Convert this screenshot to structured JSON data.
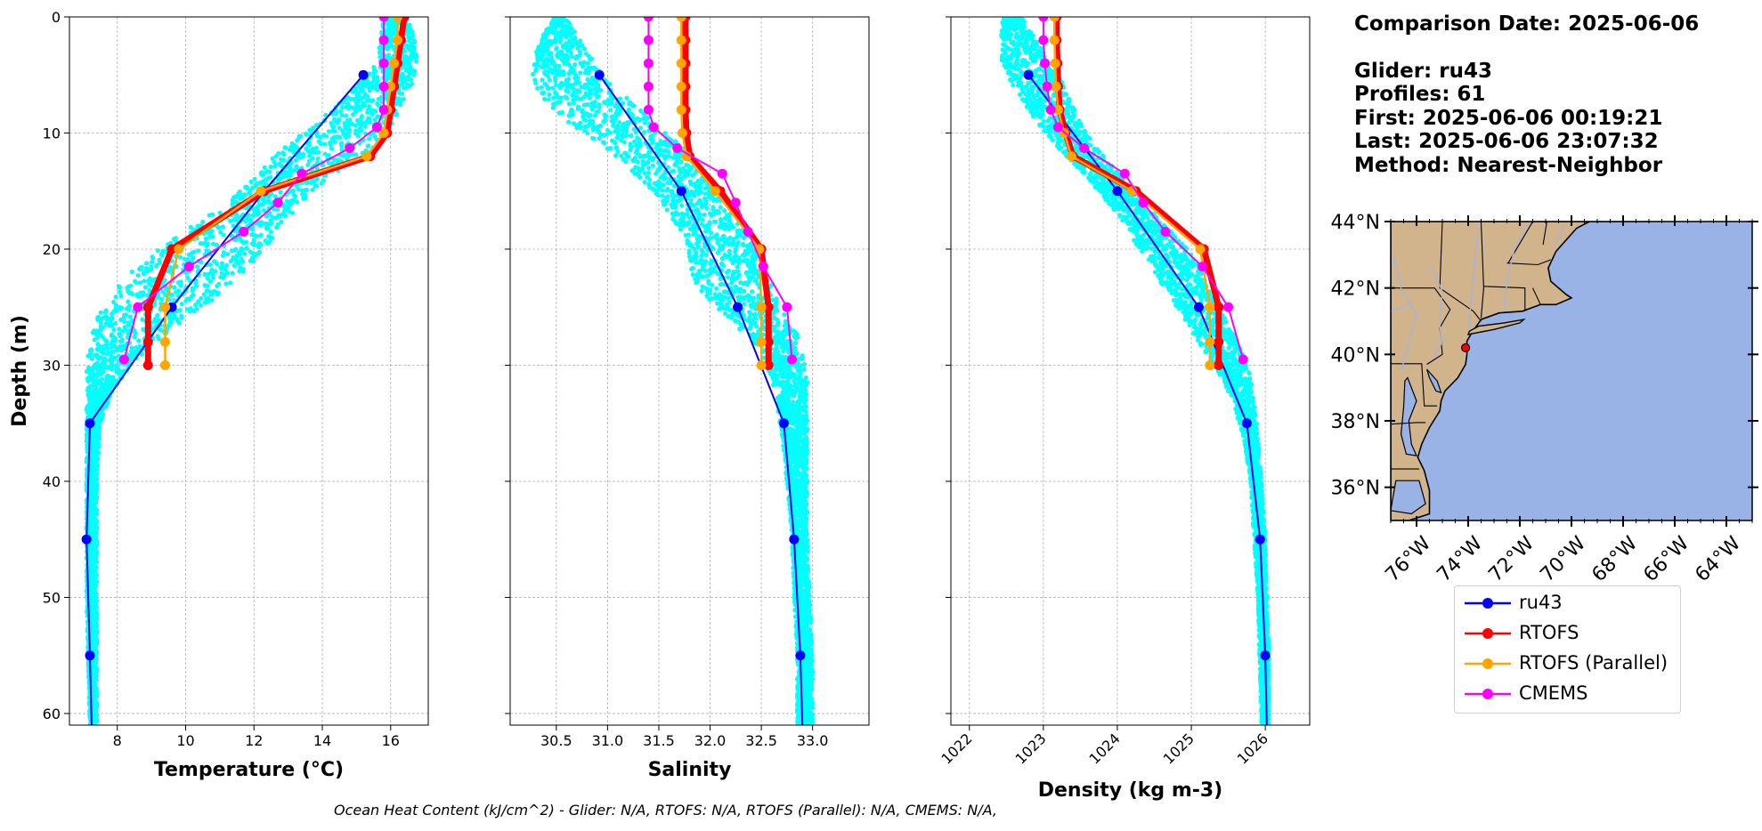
{
  "chart_data": [
    {
      "type": "line",
      "title": "",
      "xlabel": "Temperature (°C)",
      "ylabel": "Depth (m)",
      "xlim": [
        6.6,
        17.1
      ],
      "ylim": [
        61,
        0
      ],
      "y_inverted": true,
      "xticks": [
        8,
        10,
        12,
        14,
        16
      ],
      "yticks": [
        0,
        10,
        20,
        30,
        40,
        50,
        60
      ],
      "grid": true,
      "scatter_series": {
        "name": "glider profiles",
        "color": "#00ffff",
        "envelope": [
          [
            0,
            15.8,
            16.5
          ],
          [
            2,
            15.7,
            16.7
          ],
          [
            4,
            15.6,
            16.8
          ],
          [
            6,
            15.0,
            16.6
          ],
          [
            8,
            14.3,
            16.3
          ],
          [
            10,
            13.4,
            16.0
          ],
          [
            12,
            12.6,
            15.3
          ],
          [
            14,
            12.0,
            14.1
          ],
          [
            16,
            11.2,
            13.4
          ],
          [
            18,
            10.2,
            12.8
          ],
          [
            20,
            9.2,
            12.3
          ],
          [
            22,
            8.4,
            11.7
          ],
          [
            24,
            7.8,
            11.0
          ],
          [
            26,
            7.4,
            10.0
          ],
          [
            28,
            7.2,
            9.1
          ],
          [
            30,
            7.1,
            8.4
          ],
          [
            32,
            7.1,
            7.9
          ],
          [
            35,
            7.1,
            7.5
          ],
          [
            40,
            7.1,
            7.4
          ],
          [
            50,
            7.1,
            7.4
          ],
          [
            61,
            7.2,
            7.4
          ]
        ]
      },
      "series": [
        {
          "name": "ru43",
          "color": "#0000ff",
          "line_width": 2,
          "points": [
            [
              15.2,
              5
            ],
            [
              12.3,
              15
            ],
            [
              9.6,
              25
            ],
            [
              7.2,
              35
            ],
            [
              7.1,
              45
            ],
            [
              7.2,
              55
            ],
            [
              7.25,
              61
            ]
          ]
        },
        {
          "name": "RTOFS",
          "color": "#ff0000",
          "line_width": 7,
          "points": [
            [
              16.4,
              0
            ],
            [
              16.3,
              2
            ],
            [
              16.2,
              4
            ],
            [
              16.1,
              6
            ],
            [
              16.0,
              8
            ],
            [
              15.9,
              10
            ],
            [
              15.4,
              12
            ],
            [
              12.3,
              15
            ],
            [
              9.6,
              20
            ],
            [
              8.9,
              25
            ],
            [
              8.9,
              28
            ],
            [
              8.9,
              30
            ]
          ]
        },
        {
          "name": "RTOFS (Parallel)",
          "color": "#ffa500",
          "line_width": 2.5,
          "points": [
            [
              16.2,
              0
            ],
            [
              16.2,
              2
            ],
            [
              16.1,
              4
            ],
            [
              16.0,
              6
            ],
            [
              15.9,
              8
            ],
            [
              15.8,
              10
            ],
            [
              15.3,
              12
            ],
            [
              12.2,
              15
            ],
            [
              9.8,
              20
            ],
            [
              9.4,
              25
            ],
            [
              9.4,
              28
            ],
            [
              9.4,
              30
            ]
          ]
        },
        {
          "name": "CMEMS",
          "color": "#ff00ff",
          "line_width": 2,
          "points": [
            [
              15.8,
              0
            ],
            [
              15.8,
              2
            ],
            [
              15.8,
              4
            ],
            [
              15.8,
              6
            ],
            [
              15.8,
              8
            ],
            [
              15.6,
              9.5
            ],
            [
              14.8,
              11.3
            ],
            [
              13.4,
              13.5
            ],
            [
              12.7,
              16
            ],
            [
              11.7,
              18.5
            ],
            [
              10.1,
              21.5
            ],
            [
              8.6,
              25
            ],
            [
              8.2,
              29.5
            ]
          ]
        }
      ]
    },
    {
      "type": "line",
      "title": "",
      "xlabel": "Salinity",
      "ylabel": "",
      "xlim": [
        30.05,
        33.55
      ],
      "ylim": [
        61,
        0
      ],
      "y_inverted": true,
      "xticks": [
        30.5,
        31.0,
        31.5,
        32.0,
        32.5,
        33.0
      ],
      "yticks": [
        0,
        10,
        20,
        30,
        40,
        50,
        60
      ],
      "grid": true,
      "scatter_series": {
        "name": "glider profiles",
        "color": "#00ffff",
        "envelope": [
          [
            0,
            30.45,
            30.6
          ],
          [
            3,
            30.3,
            30.8
          ],
          [
            5,
            30.25,
            30.95
          ],
          [
            7,
            30.35,
            31.2
          ],
          [
            9,
            30.6,
            31.45
          ],
          [
            11,
            30.95,
            31.7
          ],
          [
            13,
            31.2,
            31.9
          ],
          [
            15,
            31.45,
            32.05
          ],
          [
            17,
            31.6,
            32.2
          ],
          [
            19,
            31.75,
            32.4
          ],
          [
            21,
            31.8,
            32.5
          ],
          [
            23,
            31.85,
            32.6
          ],
          [
            25,
            32.05,
            32.7
          ],
          [
            27,
            32.3,
            32.85
          ],
          [
            29,
            32.5,
            32.9
          ],
          [
            31,
            32.6,
            32.95
          ],
          [
            33,
            32.65,
            32.95
          ],
          [
            36,
            32.7,
            32.95
          ],
          [
            40,
            32.75,
            32.95
          ],
          [
            45,
            32.8,
            32.95
          ],
          [
            50,
            32.82,
            32.97
          ],
          [
            55,
            32.85,
            33.0
          ],
          [
            61,
            32.85,
            33.0
          ]
        ]
      },
      "series": [
        {
          "name": "ru43",
          "color": "#0000ff",
          "line_width": 2,
          "points": [
            [
              30.92,
              5
            ],
            [
              31.72,
              15
            ],
            [
              32.27,
              25
            ],
            [
              32.72,
              35
            ],
            [
              32.82,
              45
            ],
            [
              32.88,
              55
            ],
            [
              32.9,
              61
            ]
          ]
        },
        {
          "name": "RTOFS",
          "color": "#ff0000",
          "line_width": 7,
          "points": [
            [
              31.76,
              0
            ],
            [
              31.76,
              2
            ],
            [
              31.76,
              4
            ],
            [
              31.76,
              6
            ],
            [
              31.76,
              8
            ],
            [
              31.77,
              10
            ],
            [
              31.8,
              12
            ],
            [
              32.1,
              15
            ],
            [
              32.5,
              20
            ],
            [
              32.57,
              25
            ],
            [
              32.57,
              28
            ],
            [
              32.57,
              30
            ]
          ]
        },
        {
          "name": "RTOFS (Parallel)",
          "color": "#ffa500",
          "line_width": 2.5,
          "points": [
            [
              31.72,
              0
            ],
            [
              31.72,
              2
            ],
            [
              31.72,
              4
            ],
            [
              31.72,
              6
            ],
            [
              31.72,
              8
            ],
            [
              31.73,
              10
            ],
            [
              31.77,
              12
            ],
            [
              32.05,
              15
            ],
            [
              32.48,
              20
            ],
            [
              32.5,
              25
            ],
            [
              32.5,
              28
            ],
            [
              32.5,
              30
            ]
          ]
        },
        {
          "name": "CMEMS",
          "color": "#ff00ff",
          "line_width": 2,
          "points": [
            [
              31.4,
              0
            ],
            [
              31.4,
              2
            ],
            [
              31.4,
              4
            ],
            [
              31.4,
              6
            ],
            [
              31.4,
              8
            ],
            [
              31.45,
              9.5
            ],
            [
              31.68,
              11.3
            ],
            [
              32.12,
              13.5
            ],
            [
              32.25,
              16
            ],
            [
              32.37,
              18.5
            ],
            [
              32.52,
              21.5
            ],
            [
              32.75,
              25
            ],
            [
              32.8,
              29.5
            ]
          ]
        }
      ]
    },
    {
      "type": "line",
      "title": "",
      "xlabel": "Density (kg m-3)",
      "ylabel": "",
      "xlim": [
        1021.75,
        1026.6
      ],
      "ylim": [
        61,
        0
      ],
      "y_inverted": true,
      "xticks": [
        1022,
        1023,
        1024,
        1025,
        1026
      ],
      "yticks": [
        0,
        10,
        20,
        30,
        40,
        50,
        60
      ],
      "grid": true,
      "scatter_series": {
        "name": "glider profiles",
        "color": "#00ffff",
        "envelope": [
          [
            0,
            1022.45,
            1022.7
          ],
          [
            3,
            1022.4,
            1023.0
          ],
          [
            5,
            1022.5,
            1023.2
          ],
          [
            7,
            1022.7,
            1023.35
          ],
          [
            9,
            1022.9,
            1023.5
          ],
          [
            11,
            1023.15,
            1023.7
          ],
          [
            13,
            1023.45,
            1023.95
          ],
          [
            15,
            1023.75,
            1024.2
          ],
          [
            17,
            1024.0,
            1024.5
          ],
          [
            19,
            1024.2,
            1024.8
          ],
          [
            21,
            1024.4,
            1025.1
          ],
          [
            23,
            1024.6,
            1025.2
          ],
          [
            25,
            1024.8,
            1025.4
          ],
          [
            27,
            1025.0,
            1025.55
          ],
          [
            29,
            1025.2,
            1025.7
          ],
          [
            31,
            1025.4,
            1025.8
          ],
          [
            33,
            1025.55,
            1025.85
          ],
          [
            36,
            1025.7,
            1025.9
          ],
          [
            40,
            1025.8,
            1025.95
          ],
          [
            45,
            1025.85,
            1026.0
          ],
          [
            50,
            1025.9,
            1026.02
          ],
          [
            55,
            1025.92,
            1026.05
          ],
          [
            61,
            1025.95,
            1026.05
          ]
        ]
      },
      "series": [
        {
          "name": "ru43",
          "color": "#0000ff",
          "line_width": 2,
          "points": [
            [
              1022.8,
              5
            ],
            [
              1024.0,
              15
            ],
            [
              1025.1,
              25
            ],
            [
              1025.75,
              35
            ],
            [
              1025.93,
              45
            ],
            [
              1026.0,
              55
            ],
            [
              1026.02,
              61
            ]
          ]
        },
        {
          "name": "RTOFS",
          "color": "#ff0000",
          "line_width": 7,
          "points": [
            [
              1023.18,
              0
            ],
            [
              1023.18,
              2
            ],
            [
              1023.19,
              4
            ],
            [
              1023.2,
              6
            ],
            [
              1023.22,
              8
            ],
            [
              1023.3,
              10
            ],
            [
              1023.4,
              12
            ],
            [
              1024.25,
              15
            ],
            [
              1025.17,
              20
            ],
            [
              1025.37,
              25
            ],
            [
              1025.37,
              28
            ],
            [
              1025.37,
              30
            ]
          ]
        },
        {
          "name": "RTOFS (Parallel)",
          "color": "#ffa500",
          "line_width": 2.5,
          "points": [
            [
              1023.15,
              0
            ],
            [
              1023.15,
              2
            ],
            [
              1023.16,
              4
            ],
            [
              1023.17,
              6
            ],
            [
              1023.2,
              8
            ],
            [
              1023.28,
              10
            ],
            [
              1023.38,
              12
            ],
            [
              1024.2,
              15
            ],
            [
              1025.12,
              20
            ],
            [
              1025.25,
              25
            ],
            [
              1025.25,
              28
            ],
            [
              1025.25,
              30
            ]
          ]
        },
        {
          "name": "CMEMS",
          "color": "#ff00ff",
          "line_width": 2,
          "points": [
            [
              1023.0,
              0
            ],
            [
              1023.0,
              2
            ],
            [
              1023.02,
              4
            ],
            [
              1023.05,
              6
            ],
            [
              1023.1,
              8
            ],
            [
              1023.2,
              9.5
            ],
            [
              1023.55,
              11.3
            ],
            [
              1024.1,
              13.5
            ],
            [
              1024.35,
              16
            ],
            [
              1024.65,
              18.5
            ],
            [
              1025.15,
              21.5
            ],
            [
              1025.5,
              25
            ],
            [
              1025.7,
              29.5
            ]
          ]
        }
      ]
    }
  ],
  "map": {
    "lat_ticks": [
      "36°N",
      "38°N",
      "40°N",
      "42°N",
      "44°N"
    ],
    "lon_ticks": [
      "76°W",
      "74°W",
      "72°W",
      "70°W",
      "68°W",
      "66°W",
      "64°W"
    ],
    "lat_range": [
      35,
      44
    ],
    "lon_range": [
      -77,
      -63
    ],
    "glider_position": {
      "lat": 40.2,
      "lon": -74.1
    },
    "land_color": "#d2b48c",
    "ocean_color": "#99b3e6",
    "marker_color": "#ff0000"
  },
  "info": {
    "comparison": "Comparison Date: 2025-06-06",
    "glider": "Glider: ru43",
    "profiles": "Profiles: 61",
    "first": "First: 2025-06-06 00:19:21",
    "last": "Last: 2025-06-06 23:07:32",
    "method": "Method: Nearest-Neighbor"
  },
  "legend": [
    {
      "label": "ru43",
      "color": "#0000ff"
    },
    {
      "label": "RTOFS",
      "color": "#ff0000"
    },
    {
      "label": "RTOFS (Parallel)",
      "color": "#ffa500"
    },
    {
      "label": "CMEMS",
      "color": "#ff00ff"
    }
  ],
  "footer": "Ocean Heat Content (kJ/cm^2) - Glider: N/A,  RTOFS: N/A,  RTOFS (Parallel): N/A,  CMEMS: N/A,"
}
